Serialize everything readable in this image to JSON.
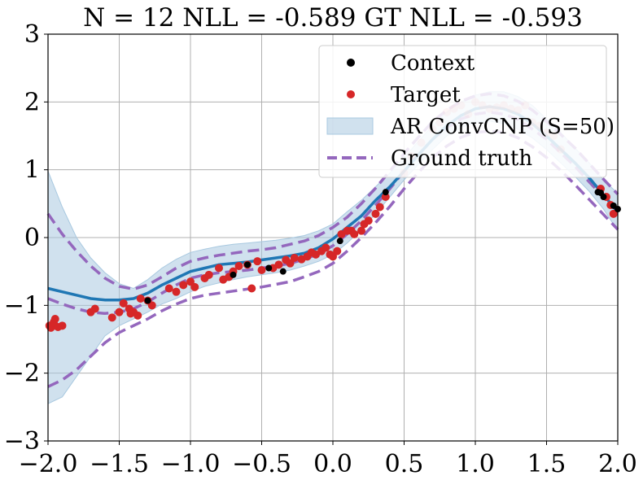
{
  "chart_data": {
    "type": "line",
    "title": "N = 12 NLL = -0.589 GT NLL = -0.593",
    "xlabel": "",
    "ylabel": "",
    "xlim": [
      -2.0,
      2.0
    ],
    "ylim": [
      -3,
      3
    ],
    "grid": true,
    "legend_position": "top-right",
    "x_ticks": [
      "−2.0",
      "−1.5",
      "−1.0",
      "−0.5",
      "0.0",
      "0.5",
      "1.0",
      "1.5",
      "2.0"
    ],
    "x_tick_values": [
      -2.0,
      -1.5,
      -1.0,
      -0.5,
      0.0,
      0.5,
      1.0,
      1.5,
      2.0
    ],
    "y_ticks": [
      "3",
      "2",
      "1",
      "0",
      "−1",
      "−2",
      "−3"
    ],
    "y_tick_values": [
      3,
      2,
      1,
      0,
      -1,
      -2,
      -3
    ],
    "colors": {
      "model_mean": "#1f77b4",
      "model_band": "#a9c9e0",
      "ground_truth": "#9467bd",
      "context": "#000000",
      "target": "#d62728"
    },
    "series": [
      {
        "name": "Context",
        "kind": "scatter",
        "x": [
          -1.3,
          -0.7,
          -0.35,
          0.37,
          1.86,
          1.88,
          1.97,
          2.0,
          -0.45,
          0.05,
          -0.6,
          1.9
        ],
        "y": [
          -0.93,
          -0.55,
          -0.5,
          0.67,
          0.67,
          0.66,
          0.47,
          0.42,
          -0.45,
          -0.05,
          -0.4,
          0.6
        ]
      },
      {
        "name": "Target",
        "kind": "scatter",
        "x": [
          -1.99,
          -1.98,
          -1.96,
          -1.95,
          -1.93,
          -1.9,
          -1.7,
          -1.67,
          -1.55,
          -1.5,
          -1.47,
          -1.43,
          -1.42,
          -1.4,
          -1.37,
          -1.35,
          -1.3,
          -1.27,
          -1.15,
          -1.1,
          -1.05,
          -1.0,
          -0.97,
          -0.9,
          -0.87,
          -0.8,
          -0.77,
          -0.73,
          -0.7,
          -0.66,
          -0.6,
          -0.57,
          -0.53,
          -0.5,
          -0.42,
          -0.38,
          -0.33,
          -0.3,
          -0.27,
          -0.22,
          -0.18,
          -0.15,
          -0.12,
          -0.08,
          -0.05,
          -0.02,
          0.0,
          0.03,
          0.06,
          0.1,
          0.13,
          0.15,
          0.2,
          0.22,
          0.25,
          0.3,
          0.33,
          0.37,
          0.5,
          0.55,
          0.62,
          0.7,
          0.75,
          0.8,
          0.85,
          0.9,
          0.95,
          1.0,
          1.05,
          1.1,
          1.15,
          1.2,
          1.25,
          1.3,
          1.35,
          1.4,
          1.45,
          1.5,
          1.55,
          1.6,
          1.88,
          1.92,
          1.95,
          1.97
        ],
        "y": [
          -1.3,
          -1.33,
          -1.25,
          -1.2,
          -1.32,
          -1.3,
          -1.1,
          -1.05,
          -1.18,
          -1.1,
          -0.97,
          -1.05,
          -1.12,
          -1.1,
          -1.15,
          -0.9,
          -0.93,
          -1.0,
          -0.75,
          -0.8,
          -0.7,
          -0.65,
          -0.73,
          -0.6,
          -0.55,
          -0.45,
          -0.62,
          -0.58,
          -0.5,
          -0.42,
          -0.4,
          -0.75,
          -0.35,
          -0.48,
          -0.45,
          -0.4,
          -0.33,
          -0.38,
          -0.3,
          -0.32,
          -0.28,
          -0.22,
          -0.25,
          -0.2,
          -0.15,
          -0.25,
          -0.28,
          -0.2,
          0.05,
          0.1,
          0.1,
          0.05,
          0.1,
          0.2,
          0.25,
          0.35,
          0.45,
          0.6,
          0.95,
          1.2,
          1.4,
          1.6,
          1.7,
          1.85,
          1.9,
          1.95,
          1.82,
          2.0,
          1.95,
          1.9,
          1.92,
          1.95,
          1.9,
          1.88,
          1.95,
          1.7,
          1.65,
          1.55,
          1.5,
          1.3,
          0.72,
          0.6,
          0.48,
          0.35
        ]
      },
      {
        "name": "AR ConvCNP (S=50)",
        "kind": "line_band",
        "x": [
          -2.0,
          -1.9,
          -1.8,
          -1.7,
          -1.6,
          -1.5,
          -1.4,
          -1.3,
          -1.2,
          -1.1,
          -1.0,
          -0.9,
          -0.8,
          -0.7,
          -0.6,
          -0.5,
          -0.4,
          -0.3,
          -0.2,
          -0.1,
          0.0,
          0.1,
          0.2,
          0.3,
          0.4,
          0.5,
          0.6,
          0.7,
          0.8,
          0.9,
          1.0,
          1.1,
          1.2,
          1.3,
          1.4,
          1.5,
          1.6,
          1.7,
          1.8,
          1.9,
          2.0
        ],
        "mean": [
          -0.75,
          -0.8,
          -0.85,
          -0.9,
          -0.92,
          -0.92,
          -0.9,
          -0.82,
          -0.7,
          -0.6,
          -0.5,
          -0.45,
          -0.4,
          -0.38,
          -0.36,
          -0.33,
          -0.3,
          -0.27,
          -0.23,
          -0.15,
          -0.02,
          0.15,
          0.32,
          0.55,
          0.75,
          0.98,
          1.22,
          1.45,
          1.65,
          1.8,
          1.9,
          1.93,
          1.9,
          1.82,
          1.68,
          1.5,
          1.3,
          1.1,
          0.88,
          0.63,
          0.38
        ],
        "lower": [
          -2.45,
          -2.35,
          -2.05,
          -1.75,
          -1.45,
          -1.3,
          -1.2,
          -1.1,
          -0.98,
          -0.9,
          -0.8,
          -0.72,
          -0.67,
          -0.62,
          -0.58,
          -0.55,
          -0.52,
          -0.48,
          -0.42,
          -0.35,
          -0.25,
          -0.08,
          0.12,
          0.35,
          0.6,
          0.85,
          1.08,
          1.3,
          1.5,
          1.62,
          1.7,
          1.72,
          1.68,
          1.6,
          1.47,
          1.3,
          1.1,
          0.9,
          0.68,
          0.42,
          0.1
        ],
        "upper": [
          0.98,
          0.45,
          0.0,
          -0.3,
          -0.52,
          -0.68,
          -0.75,
          -0.62,
          -0.45,
          -0.32,
          -0.22,
          -0.17,
          -0.13,
          -0.1,
          -0.08,
          -0.06,
          -0.04,
          -0.01,
          0.03,
          0.1,
          0.2,
          0.38,
          0.55,
          0.75,
          0.95,
          1.18,
          1.42,
          1.65,
          1.85,
          2.0,
          2.1,
          2.15,
          2.15,
          2.08,
          1.95,
          1.75,
          1.55,
          1.32,
          1.1,
          0.85,
          0.65
        ]
      },
      {
        "name": "Ground truth",
        "kind": "dashed_bands",
        "x": [
          -2.0,
          -1.9,
          -1.8,
          -1.7,
          -1.6,
          -1.5,
          -1.4,
          -1.3,
          -1.2,
          -1.1,
          -1.0,
          -0.9,
          -0.8,
          -0.7,
          -0.6,
          -0.5,
          -0.4,
          -0.3,
          -0.2,
          -0.1,
          0.0,
          0.1,
          0.2,
          0.3,
          0.4,
          0.5,
          0.6,
          0.7,
          0.8,
          0.9,
          1.0,
          1.1,
          1.2,
          1.3,
          1.4,
          1.5,
          1.6,
          1.7,
          1.8,
          1.9,
          2.0
        ],
        "mean": [
          -0.9,
          -0.98,
          -1.05,
          -1.1,
          -1.12,
          -1.1,
          -1.05,
          -0.95,
          -0.82,
          -0.7,
          -0.6,
          -0.55,
          -0.52,
          -0.5,
          -0.48,
          -0.45,
          -0.42,
          -0.38,
          -0.32,
          -0.24,
          -0.12,
          0.05,
          0.25,
          0.48,
          0.72,
          0.98,
          1.22,
          1.45,
          1.62,
          1.75,
          1.82,
          1.85,
          1.82,
          1.74,
          1.6,
          1.45,
          1.25,
          1.05,
          0.82,
          0.6,
          0.38
        ],
        "lower": [
          -2.2,
          -2.1,
          -1.95,
          -1.75,
          -1.55,
          -1.4,
          -1.3,
          -1.2,
          -1.08,
          -0.98,
          -0.9,
          -0.85,
          -0.82,
          -0.79,
          -0.76,
          -0.73,
          -0.69,
          -0.65,
          -0.58,
          -0.5,
          -0.38,
          -0.2,
          0.0,
          0.22,
          0.46,
          0.72,
          0.96,
          1.18,
          1.35,
          1.48,
          1.55,
          1.57,
          1.55,
          1.47,
          1.34,
          1.18,
          0.99,
          0.78,
          0.56,
          0.34,
          0.12
        ],
        "upper": [
          0.35,
          0.05,
          -0.2,
          -0.42,
          -0.6,
          -0.72,
          -0.76,
          -0.7,
          -0.58,
          -0.45,
          -0.35,
          -0.3,
          -0.26,
          -0.23,
          -0.2,
          -0.18,
          -0.15,
          -0.1,
          -0.05,
          0.03,
          0.15,
          0.3,
          0.5,
          0.73,
          0.98,
          1.24,
          1.48,
          1.71,
          1.88,
          2.01,
          2.09,
          2.12,
          2.09,
          2.01,
          1.88,
          1.71,
          1.52,
          1.32,
          1.09,
          0.86,
          0.64
        ]
      }
    ],
    "legend": [
      "Context",
      "Target",
      "AR ConvCNP (S=50)",
      "Ground truth"
    ]
  }
}
